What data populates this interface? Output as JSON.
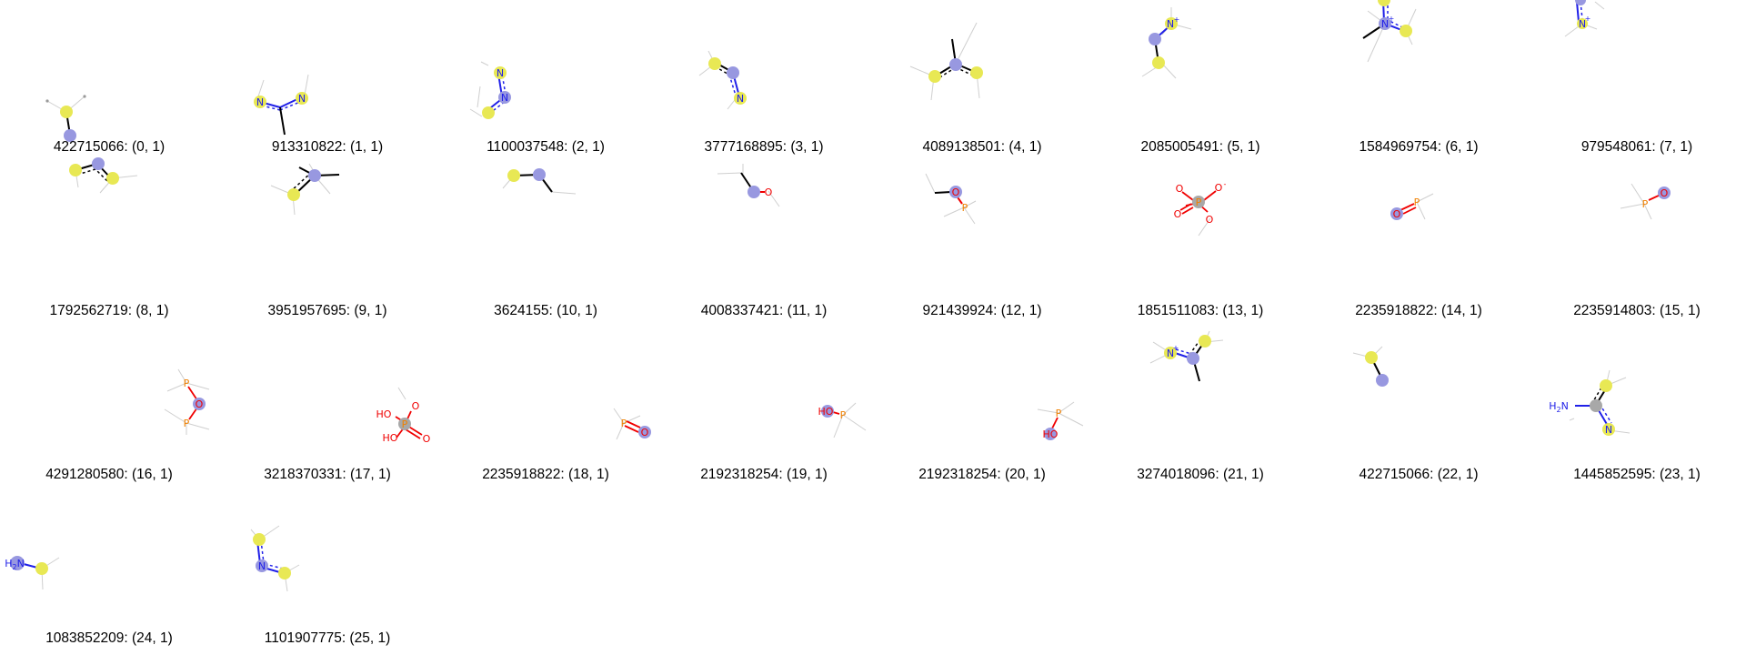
{
  "fragments": [
    {
      "legend": "422715066: (0, 1)"
    },
    {
      "legend": "913310822: (1, 1)"
    },
    {
      "legend": "1100037548: (2, 1)"
    },
    {
      "legend": "3777168895: (3, 1)"
    },
    {
      "legend": "4089138501: (4, 1)"
    },
    {
      "legend": "2085005491: (5, 1)"
    },
    {
      "legend": "1584969754: (6, 1)"
    },
    {
      "legend": "979548061: (7, 1)"
    },
    {
      "legend": "1792562719: (8, 1)"
    },
    {
      "legend": "3951957695: (9, 1)"
    },
    {
      "legend": "3624155: (10, 1)"
    },
    {
      "legend": "4008337421: (11, 1)"
    },
    {
      "legend": "921439924: (12, 1)"
    },
    {
      "legend": "1851511083: (13, 1)"
    },
    {
      "legend": "2235918822: (14, 1)"
    },
    {
      "legend": "2235914803: (15, 1)"
    },
    {
      "legend": "4291280580: (16, 1)"
    },
    {
      "legend": "3218370331: (17, 1)"
    },
    {
      "legend": "2235918822: (18, 1)"
    },
    {
      "legend": "2192318254: (19, 1)"
    },
    {
      "legend": "2192318254: (20, 1)"
    },
    {
      "legend": "3274018096: (21, 1)"
    },
    {
      "legend": "422715066: (22, 1)"
    },
    {
      "legend": "1445852595: (23, 1)"
    },
    {
      "legend": "1083852209: (24, 1)"
    },
    {
      "legend": "1101907775: (25, 1)"
    }
  ],
  "atom_labels": {
    "N": "N",
    "O": "O",
    "P": "P",
    "NH": "N",
    "N_plus": "N",
    "plus": "+",
    "HO": "HO",
    "H2N_H": "H",
    "H2N_2": "2",
    "H2N_N": "N",
    "O_minus": "O",
    "minus": "-"
  },
  "colors": {
    "highlight_center": "#9898e0",
    "highlight_neighbor": "#e8e854",
    "aromatic_highlight": "#a8a8a8",
    "nitrogen": "#2020e8",
    "oxygen": "#f00000",
    "phosphorus": "#f08000",
    "bond": "#000000",
    "dummy": "#c8c8c8"
  }
}
